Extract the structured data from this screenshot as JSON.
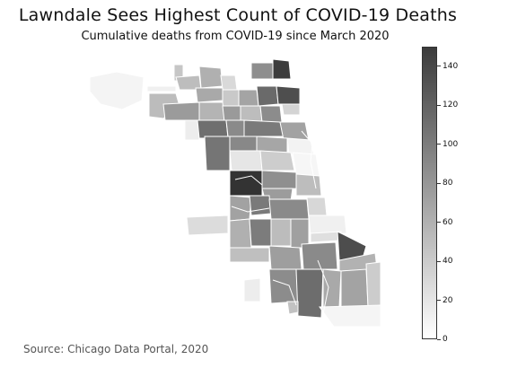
{
  "header": {
    "title": "Lawndale Sees Highest Count of COVID-19 Deaths",
    "subtitle": "Cumulative deaths from COVID-19 since March 2020"
  },
  "footer": {
    "source": "Source: Chicago Data Portal, 2020"
  },
  "colorbar": {
    "min": 0,
    "max": 150,
    "ticks": [
      "0",
      "20",
      "40",
      "60",
      "80",
      "100",
      "120",
      "140"
    ],
    "color_low": "#ffffff",
    "color_high": "#3b3b3b"
  },
  "map": {
    "region": "Chicago",
    "boundary_color": "#ffffff"
  }
}
